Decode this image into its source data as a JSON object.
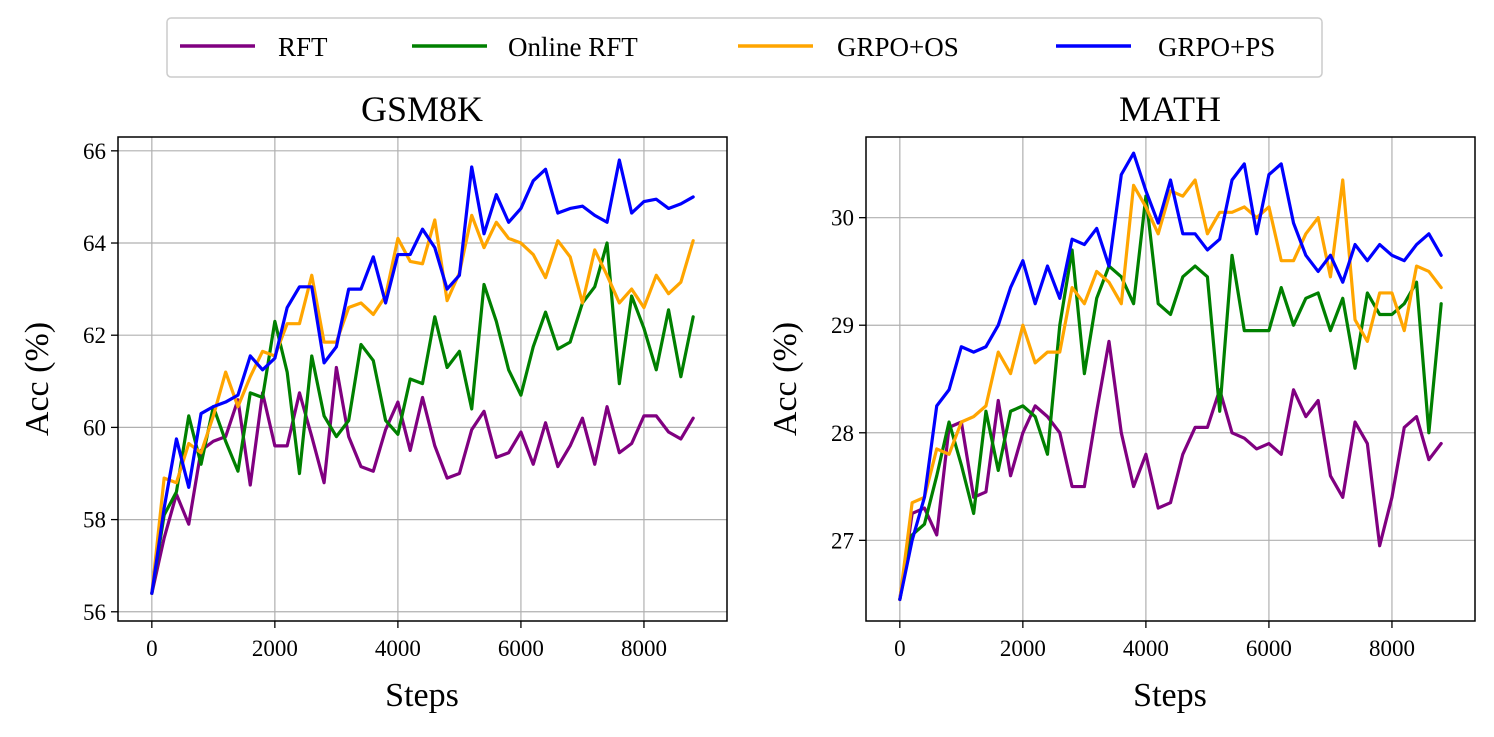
{
  "legend": [
    {
      "label": "RFT",
      "color": "#800080"
    },
    {
      "label": "Online RFT",
      "color": "#008000"
    },
    {
      "label": "GRPO+OS",
      "color": "#FFA500"
    },
    {
      "label": "GRPO+PS",
      "color": "#0000FF"
    }
  ],
  "chart_data": [
    {
      "type": "line",
      "title": "GSM8K",
      "xlabel": "Steps",
      "ylabel": "Acc (%)",
      "xlim": [
        -550,
        9350
      ],
      "ylim": [
        55.8,
        66.3
      ],
      "xticks": [
        0,
        2000,
        4000,
        6000,
        8000
      ],
      "yticks": [
        56,
        58,
        60,
        62,
        64,
        66
      ],
      "grid": true,
      "x": [
        0,
        200,
        400,
        600,
        800,
        1000,
        1200,
        1400,
        1600,
        1800,
        2000,
        2200,
        2400,
        2600,
        2800,
        3000,
        3200,
        3400,
        3600,
        3800,
        4000,
        4200,
        4400,
        4600,
        4800,
        5000,
        5200,
        5400,
        5600,
        5800,
        6000,
        6200,
        6400,
        6600,
        6800,
        7000,
        7200,
        7400,
        7600,
        7800,
        8000,
        8200,
        8400,
        8600,
        8800
      ],
      "series": [
        {
          "name": "RFT",
          "color": "#800080",
          "values": [
            56.4,
            57.6,
            58.55,
            57.9,
            59.5,
            59.7,
            59.8,
            60.6,
            58.75,
            60.75,
            59.6,
            59.6,
            60.75,
            59.8,
            58.8,
            61.3,
            59.8,
            59.15,
            59.05,
            59.95,
            60.55,
            59.5,
            60.65,
            59.6,
            58.9,
            59.0,
            59.95,
            60.35,
            59.35,
            59.45,
            59.9,
            59.2,
            60.1,
            59.15,
            59.6,
            60.2,
            59.2,
            60.45,
            59.45,
            59.65,
            60.25,
            60.25,
            59.9,
            59.75,
            60.2
          ]
        },
        {
          "name": "Online RFT",
          "color": "#008000",
          "values": [
            56.4,
            58.1,
            58.6,
            60.25,
            59.2,
            60.45,
            59.7,
            59.05,
            60.75,
            60.65,
            62.3,
            61.2,
            59.0,
            61.55,
            60.25,
            59.8,
            60.15,
            61.8,
            61.45,
            60.15,
            59.85,
            61.05,
            60.95,
            62.4,
            61.3,
            61.65,
            60.4,
            63.1,
            62.3,
            61.25,
            60.7,
            61.75,
            62.5,
            61.7,
            61.85,
            62.7,
            63.05,
            64.0,
            60.95,
            62.85,
            62.15,
            61.25,
            62.55,
            61.1,
            62.4
          ]
        },
        {
          "name": "GRPO+OS",
          "color": "#FFA500",
          "values": [
            56.4,
            58.9,
            58.8,
            59.65,
            59.45,
            60.25,
            61.2,
            60.45,
            61.1,
            61.65,
            61.55,
            62.25,
            62.25,
            63.3,
            61.85,
            61.85,
            62.6,
            62.7,
            62.45,
            62.85,
            64.1,
            63.6,
            63.55,
            64.5,
            62.75,
            63.35,
            64.6,
            63.9,
            64.45,
            64.1,
            64.0,
            63.75,
            63.25,
            64.05,
            63.7,
            62.7,
            63.85,
            63.3,
            62.7,
            63.0,
            62.6,
            63.3,
            62.9,
            63.15,
            64.05
          ]
        },
        {
          "name": "GRPO+PS",
          "color": "#0000FF",
          "values": [
            56.4,
            58.25,
            59.75,
            58.7,
            60.3,
            60.45,
            60.55,
            60.7,
            61.55,
            61.25,
            61.5,
            62.6,
            63.05,
            63.05,
            61.4,
            61.75,
            63.0,
            63.0,
            63.7,
            62.7,
            63.75,
            63.75,
            64.3,
            63.9,
            63.0,
            63.3,
            65.65,
            64.2,
            65.05,
            64.45,
            64.75,
            65.35,
            65.6,
            64.65,
            64.75,
            64.8,
            64.6,
            64.45,
            65.8,
            64.65,
            64.9,
            64.95,
            64.75,
            64.85,
            65.0
          ]
        }
      ]
    },
    {
      "type": "line",
      "title": "MATH",
      "xlabel": "Steps",
      "ylabel": "Acc (%)",
      "xlim": [
        -550,
        9350
      ],
      "ylim": [
        26.25,
        30.75
      ],
      "xticks": [
        0,
        2000,
        4000,
        6000,
        8000
      ],
      "yticks": [
        27,
        28,
        29,
        30
      ],
      "grid": true,
      "x": [
        0,
        200,
        400,
        600,
        800,
        1000,
        1200,
        1400,
        1600,
        1800,
        2000,
        2200,
        2400,
        2600,
        2800,
        3000,
        3200,
        3400,
        3600,
        3800,
        4000,
        4200,
        4400,
        4600,
        4800,
        5000,
        5200,
        5400,
        5600,
        5800,
        6000,
        6200,
        6400,
        6600,
        6800,
        7000,
        7200,
        7400,
        7600,
        7800,
        8000,
        8200,
        8400,
        8600,
        8800
      ],
      "series": [
        {
          "name": "RFT",
          "color": "#800080",
          "values": [
            26.45,
            27.25,
            27.3,
            27.05,
            28.05,
            28.1,
            27.4,
            27.45,
            28.3,
            27.6,
            28.0,
            28.25,
            28.15,
            28.0,
            27.5,
            27.5,
            28.2,
            28.85,
            28.0,
            27.5,
            27.8,
            27.3,
            27.35,
            27.8,
            28.05,
            28.05,
            28.4,
            28.0,
            27.95,
            27.85,
            27.9,
            27.8,
            28.4,
            28.15,
            28.3,
            27.6,
            27.4,
            28.1,
            27.9,
            26.95,
            27.4,
            28.05,
            28.15,
            27.75,
            27.9
          ]
        },
        {
          "name": "Online RFT",
          "color": "#008000",
          "values": [
            26.45,
            27.05,
            27.15,
            27.6,
            28.1,
            27.7,
            27.25,
            28.2,
            27.65,
            28.2,
            28.25,
            28.15,
            27.8,
            29.0,
            29.7,
            28.55,
            29.25,
            29.55,
            29.45,
            29.2,
            30.2,
            29.2,
            29.1,
            29.45,
            29.55,
            29.45,
            28.2,
            29.65,
            28.95,
            28.95,
            28.95,
            29.35,
            29.0,
            29.25,
            29.3,
            28.95,
            29.25,
            28.6,
            29.3,
            29.1,
            29.1,
            29.2,
            29.4,
            28.0,
            29.2
          ]
        },
        {
          "name": "GRPO+OS",
          "color": "#FFA500",
          "values": [
            26.45,
            27.35,
            27.4,
            27.85,
            27.8,
            28.1,
            28.15,
            28.25,
            28.75,
            28.55,
            29.0,
            28.65,
            28.75,
            28.75,
            29.35,
            29.2,
            29.5,
            29.4,
            29.2,
            30.3,
            30.1,
            29.85,
            30.25,
            30.2,
            30.35,
            29.85,
            30.05,
            30.05,
            30.1,
            30.0,
            30.1,
            29.6,
            29.6,
            29.85,
            30.0,
            29.45,
            30.35,
            29.05,
            28.85,
            29.3,
            29.3,
            28.95,
            29.55,
            29.5,
            29.35
          ]
        },
        {
          "name": "GRPO+PS",
          "color": "#0000FF",
          "values": [
            26.45,
            27.0,
            27.4,
            28.25,
            28.4,
            28.8,
            28.75,
            28.8,
            29.0,
            29.35,
            29.6,
            29.2,
            29.55,
            29.25,
            29.8,
            29.75,
            29.9,
            29.55,
            30.4,
            30.6,
            30.25,
            29.95,
            30.35,
            29.85,
            29.85,
            29.7,
            29.8,
            30.35,
            30.5,
            29.85,
            30.4,
            30.5,
            29.95,
            29.65,
            29.5,
            29.65,
            29.4,
            29.75,
            29.6,
            29.75,
            29.65,
            29.6,
            29.75,
            29.85,
            29.65
          ]
        }
      ]
    }
  ]
}
